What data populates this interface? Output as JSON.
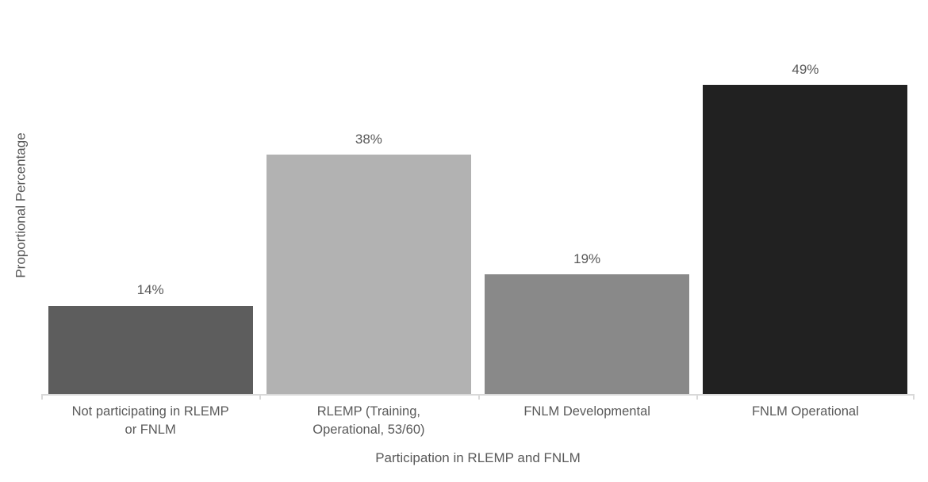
{
  "chart_data": {
    "type": "bar",
    "title": "",
    "xlabel": "Participation in RLEMP and FNLM",
    "ylabel": "Proportional Percentage",
    "categories": [
      "Not participating in RLEMP or FNLM",
      "RLEMP (Training, Operational, 53/60)",
      "FNLM Developmental",
      "FNLM Operational"
    ],
    "category_label_lines": [
      [
        "Not participating in RLEMP",
        "or FNLM"
      ],
      [
        "RLEMP (Training,",
        "Operational, 53/60)"
      ],
      [
        "FNLM Developmental"
      ],
      [
        "FNLM Operational"
      ]
    ],
    "values": [
      14,
      38,
      19,
      49
    ],
    "value_labels": [
      "14%",
      "38%",
      "19%",
      "49%"
    ],
    "bar_colors": [
      "#5d5d5d",
      "#b2b2b2",
      "#898989",
      "#212121"
    ],
    "ylim": [
      0,
      60
    ],
    "grid": false,
    "legend": "none",
    "data_label_position": "above-bar",
    "axis_line_color": "#d9d9d9",
    "text_color": "#595959",
    "background_color": "#ffffff"
  }
}
